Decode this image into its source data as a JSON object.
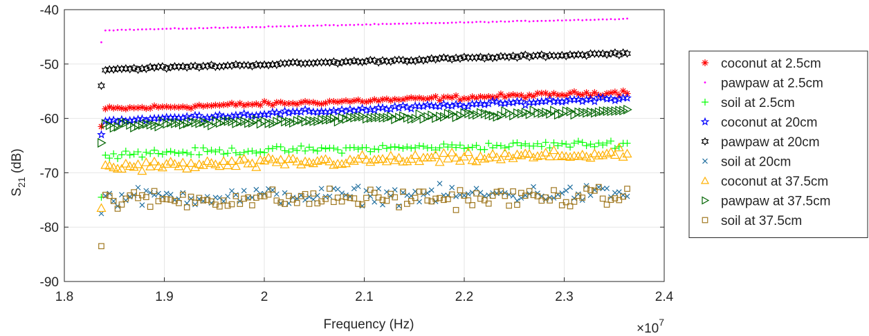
{
  "chart_data": {
    "type": "scatter",
    "title": "",
    "xlabel": "Frequency (Hz)",
    "ylabel": "S21 (dB)",
    "ylabel_main": "S",
    "ylabel_sub": "21",
    "ylabel_unit": "(dB)",
    "x_exponent_base": "×10",
    "x_exponent_power": "7",
    "xlim": [
      1.8,
      2.4
    ],
    "ylim": [
      -90,
      -40
    ],
    "x_ticks": [
      "1.8",
      "1.9",
      "2",
      "2.1",
      "2.2",
      "2.3",
      "2.4"
    ],
    "y_ticks": [
      "-90",
      "-80",
      "-70",
      "-60",
      "-50",
      "-40"
    ],
    "grid": true,
    "legend_position": "outside-right",
    "x_range_data": [
      1.837,
      2.363
    ],
    "series": [
      {
        "name": "coconut at 2.5cm",
        "marker": "asterisk",
        "color": "#ff0000",
        "start": -58.3,
        "end": -55.2,
        "noise": 0.6,
        "first": -61.5
      },
      {
        "name": "pawpaw at 2.5cm",
        "marker": "dot",
        "color": "#ff00ff",
        "start": -43.8,
        "end": -41.7,
        "noise": 0.12,
        "first": -46.0
      },
      {
        "name": "soil at 2.5cm",
        "marker": "plus",
        "color": "#00ff00",
        "start": -66.5,
        "end": -64.6,
        "noise": 1.0,
        "first": -74.5
      },
      {
        "name": "coconut at 20cm",
        "marker": "pentagram",
        "color": "#0000ff",
        "start": -60.5,
        "end": -56.2,
        "noise": 0.6,
        "first": -63.0
      },
      {
        "name": "pawpaw at 20cm",
        "marker": "hexagram",
        "color": "#000000",
        "start": -51.0,
        "end": -48.0,
        "noise": 0.4,
        "first": -54.0
      },
      {
        "name": "soil at 20cm",
        "marker": "cross",
        "color": "#1f6e9e",
        "start": -74.5,
        "end": -73.8,
        "noise": 2.4,
        "first": -77.5
      },
      {
        "name": "coconut at 37.5cm",
        "marker": "triangle-up",
        "color": "#ffb000",
        "start": -69.0,
        "end": -66.5,
        "noise": 1.4,
        "first": -76.5
      },
      {
        "name": "pawpaw at 37.5cm",
        "marker": "triangle-right",
        "color": "#006400",
        "start": -61.5,
        "end": -58.5,
        "noise": 0.8,
        "first": -64.5
      },
      {
        "name": "soil at 37.5cm",
        "marker": "square",
        "color": "#a07820",
        "start": -75.0,
        "end": -74.5,
        "noise": 2.6,
        "first": -83.5
      }
    ]
  }
}
